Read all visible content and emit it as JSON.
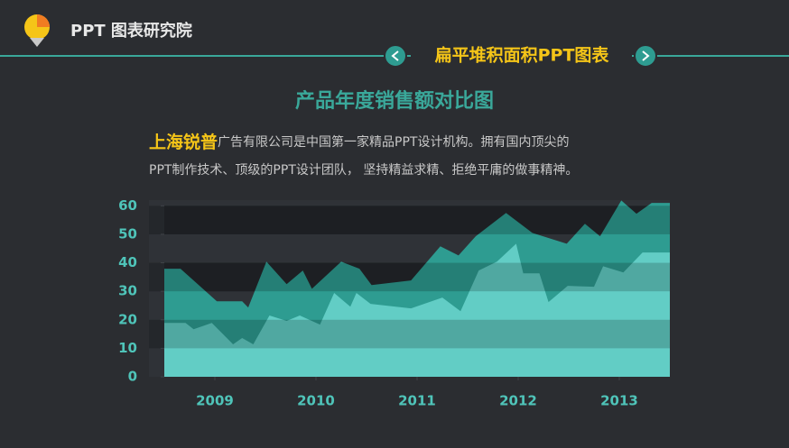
{
  "header": {
    "brand": "PPT 图表研究院",
    "section": "扁平堆积面积PPT图表"
  },
  "intro": {
    "highlight": "上海锐普",
    "line1": "广告有限公司是中国第一家精品PPT设计机构。拥有国内顶尖的",
    "line2": "PPT制作技术、顶级的PPT设计团队， 坚持精益求精、拒绝平庸的做事精神。"
  },
  "chart_data": {
    "type": "area",
    "title": "产品年度销售额对比图",
    "xlim": [
      2009,
      2014
    ],
    "xticks": [
      {
        "value": 2009.5,
        "label": "2009"
      },
      {
        "value": 2010.5,
        "label": "2010"
      },
      {
        "value": 2011.5,
        "label": "2011"
      },
      {
        "value": 2012.5,
        "label": "2012"
      },
      {
        "value": 2013.5,
        "label": "2013"
      }
    ],
    "ylim": [
      0,
      62
    ],
    "yticks": [
      0,
      10,
      20,
      30,
      40,
      50,
      60
    ],
    "series": [
      {
        "color": "#2e9c91",
        "x": [
          2009,
          2009.16,
          2009.52,
          2009.77,
          2009.83,
          2010.01,
          2010.21,
          2010.37,
          2010.46,
          2010.75,
          2010.93,
          2011.05,
          2011.44,
          2011.73,
          2011.91,
          2012.08,
          2012.38,
          2012.64,
          2012.98,
          2013.16,
          2013.31,
          2013.52,
          2013.67,
          2013.82,
          2014
        ],
        "values": [
          37.9,
          37.9,
          26.5,
          26.5,
          24.3,
          40.4,
          32.5,
          37.3,
          30.9,
          40.4,
          37.9,
          32.2,
          33.8,
          45.8,
          42.6,
          49.3,
          57.5,
          50.5,
          46.7,
          53.7,
          49.3,
          61.9,
          57.2,
          61,
          61
        ]
      },
      {
        "color": "#62cdc5",
        "x": [
          2009,
          2009.21,
          2009.29,
          2009.47,
          2009.68,
          2009.77,
          2009.88,
          2010.04,
          2010.21,
          2010.34,
          2010.54,
          2010.68,
          2010.84,
          2010.9,
          2011.04,
          2011.44,
          2011.75,
          2011.93,
          2012.11,
          2012.29,
          2012.48,
          2012.55,
          2012.71,
          2012.8,
          2012.99,
          2013.25,
          2013.34,
          2013.54,
          2013.73,
          2014
        ],
        "values": [
          18.9,
          18.9,
          16.7,
          18.9,
          11.4,
          13.6,
          11.4,
          21.5,
          19.6,
          21.5,
          18.3,
          29.4,
          24.6,
          29.4,
          25.6,
          24,
          27.8,
          23,
          37.3,
          40.4,
          46.7,
          36.3,
          36.3,
          26.2,
          31.9,
          31.6,
          38.8,
          36.6,
          43.6,
          43.6
        ]
      }
    ]
  }
}
